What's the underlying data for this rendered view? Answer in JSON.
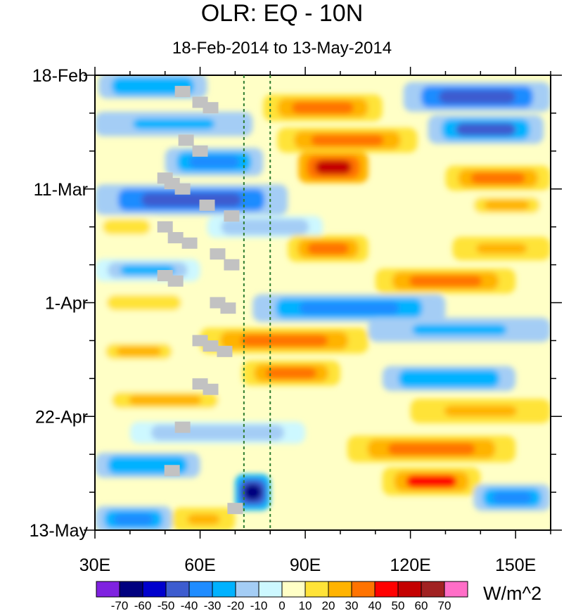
{
  "chart_data": {
    "type": "heatmap",
    "title": "OLR: EQ - 10N",
    "subtitle": "18-Feb-2014 to 13-May-2014",
    "xlabel": "",
    "ylabel": "",
    "x_range": [
      30,
      160
    ],
    "y_range_days": [
      0,
      84
    ],
    "x_ticks": [
      {
        "value": 30,
        "label": "30E"
      },
      {
        "value": 60,
        "label": "60E"
      },
      {
        "value": 90,
        "label": "90E"
      },
      {
        "value": 120,
        "label": "120E"
      },
      {
        "value": 150,
        "label": "150E"
      }
    ],
    "y_ticks": [
      {
        "day": 0,
        "label": "18-Feb"
      },
      {
        "day": 21,
        "label": "11-Mar"
      },
      {
        "day": 42,
        "label": "1-Apr"
      },
      {
        "day": 63,
        "label": "22-Apr"
      },
      {
        "day": 84,
        "label": "13-May"
      }
    ],
    "reference_lines_lon": [
      72.5,
      80
    ],
    "colorbar": {
      "units": "W/m^2",
      "levels": [
        "-70",
        "-60",
        "-50",
        "-40",
        "-30",
        "-20",
        "-10",
        "0",
        "10",
        "20",
        "30",
        "40",
        "50",
        "60",
        "70"
      ],
      "colors": [
        "#7f22e0",
        "#00007f",
        "#0000cd",
        "#3d5ccf",
        "#1f8cff",
        "#00b2ff",
        "#a4cdf5",
        "#cdf8ff",
        "#ffffc6",
        "#ffe338",
        "#ffb300",
        "#ff7300",
        "#ff0000",
        "#c40000",
        "#a12222",
        "#ff6ec7"
      ]
    },
    "anomaly_bands": [
      {
        "day": 2,
        "lon_from": 31,
        "lon_to": 62,
        "value": -30
      },
      {
        "day": 4,
        "lon_from": 118,
        "lon_to": 160,
        "value": -45
      },
      {
        "day": 6,
        "lon_from": 78,
        "lon_to": 112,
        "value": 35
      },
      {
        "day": 9,
        "lon_from": 30,
        "lon_to": 75,
        "value": -28
      },
      {
        "day": 10,
        "lon_from": 125,
        "lon_to": 158,
        "value": -42
      },
      {
        "day": 12,
        "lon_from": 82,
        "lon_to": 122,
        "value": 30
      },
      {
        "day": 16,
        "lon_from": 50,
        "lon_to": 78,
        "value": -40
      },
      {
        "day": 17,
        "lon_from": 88,
        "lon_to": 108,
        "value": 50
      },
      {
        "day": 19,
        "lon_from": 130,
        "lon_to": 160,
        "value": 30
      },
      {
        "day": 23,
        "lon_from": 30,
        "lon_to": 85,
        "value": -48
      },
      {
        "day": 24,
        "lon_from": 135,
        "lon_to": 160,
        "value": 22
      },
      {
        "day": 28,
        "lon_from": 30,
        "lon_to": 48,
        "value": 18
      },
      {
        "day": 28,
        "lon_from": 62,
        "lon_to": 95,
        "value": -20
      },
      {
        "day": 32,
        "lon_from": 85,
        "lon_to": 108,
        "value": 35
      },
      {
        "day": 32,
        "lon_from": 132,
        "lon_to": 160,
        "value": 25
      },
      {
        "day": 36,
        "lon_from": 30,
        "lon_to": 60,
        "value": -22
      },
      {
        "day": 38,
        "lon_from": 110,
        "lon_to": 150,
        "value": 30
      },
      {
        "day": 42,
        "lon_from": 30,
        "lon_to": 58,
        "value": 18
      },
      {
        "day": 43,
        "lon_from": 75,
        "lon_to": 130,
        "value": -38
      },
      {
        "day": 47,
        "lon_from": 108,
        "lon_to": 160,
        "value": -28
      },
      {
        "day": 49,
        "lon_from": 60,
        "lon_to": 108,
        "value": 32
      },
      {
        "day": 51,
        "lon_from": 30,
        "lon_to": 55,
        "value": 20
      },
      {
        "day": 55,
        "lon_from": 72,
        "lon_to": 100,
        "value": 30
      },
      {
        "day": 56,
        "lon_from": 112,
        "lon_to": 150,
        "value": -30
      },
      {
        "day": 60,
        "lon_from": 30,
        "lon_to": 70,
        "value": 22
      },
      {
        "day": 62,
        "lon_from": 120,
        "lon_to": 160,
        "value": 28
      },
      {
        "day": 66,
        "lon_from": 40,
        "lon_to": 90,
        "value": -20
      },
      {
        "day": 69,
        "lon_from": 102,
        "lon_to": 150,
        "value": 35
      },
      {
        "day": 72,
        "lon_from": 30,
        "lon_to": 60,
        "value": -30
      },
      {
        "day": 75,
        "lon_from": 112,
        "lon_to": 140,
        "value": 40
      },
      {
        "day": 77,
        "lon_from": 70,
        "lon_to": 80,
        "value": -65
      },
      {
        "day": 78,
        "lon_from": 138,
        "lon_to": 160,
        "value": -35
      },
      {
        "day": 82,
        "lon_from": 30,
        "lon_to": 52,
        "value": -35
      },
      {
        "day": 82,
        "lon_from": 52,
        "lon_to": 70,
        "value": 25
      }
    ],
    "missing_data_lons": [
      {
        "day": 3,
        "lon": 55
      },
      {
        "day": 5,
        "lon": 60
      },
      {
        "day": 6,
        "lon": 63
      },
      {
        "day": 12,
        "lon": 56
      },
      {
        "day": 14,
        "lon": 60
      },
      {
        "day": 19,
        "lon": 50
      },
      {
        "day": 20,
        "lon": 52
      },
      {
        "day": 21,
        "lon": 55
      },
      {
        "day": 24,
        "lon": 62
      },
      {
        "day": 26,
        "lon": 69
      },
      {
        "day": 28,
        "lon": 50
      },
      {
        "day": 30,
        "lon": 53
      },
      {
        "day": 31,
        "lon": 57
      },
      {
        "day": 33,
        "lon": 65
      },
      {
        "day": 35,
        "lon": 69
      },
      {
        "day": 37,
        "lon": 50
      },
      {
        "day": 38,
        "lon": 53
      },
      {
        "day": 42,
        "lon": 65
      },
      {
        "day": 43,
        "lon": 68
      },
      {
        "day": 49,
        "lon": 60
      },
      {
        "day": 50,
        "lon": 63
      },
      {
        "day": 51,
        "lon": 67
      },
      {
        "day": 57,
        "lon": 60
      },
      {
        "day": 58,
        "lon": 63
      },
      {
        "day": 65,
        "lon": 55
      },
      {
        "day": 73,
        "lon": 52
      },
      {
        "day": 80,
        "lon": 70
      }
    ]
  }
}
